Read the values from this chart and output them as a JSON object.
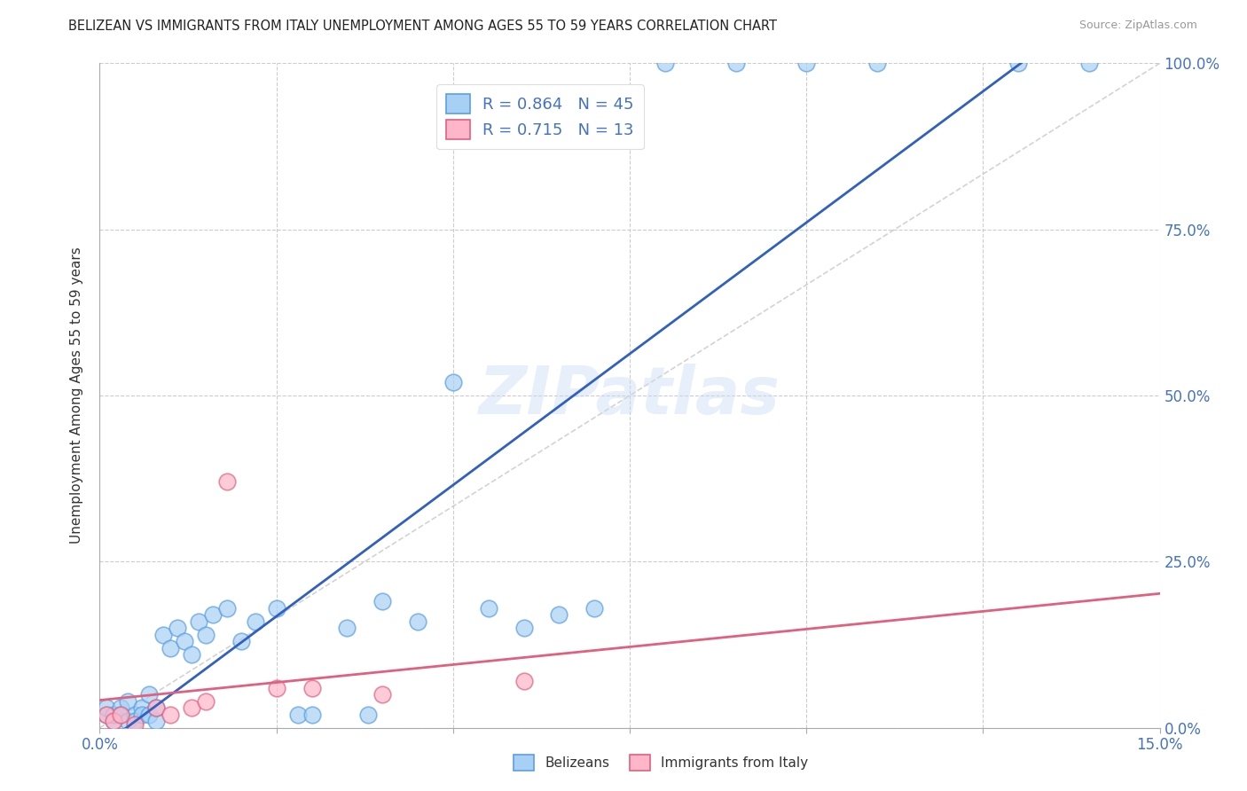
{
  "title": "BELIZEAN VS IMMIGRANTS FROM ITALY UNEMPLOYMENT AMONG AGES 55 TO 59 YEARS CORRELATION CHART",
  "source": "Source: ZipAtlas.com",
  "ylabel": "Unemployment Among Ages 55 to 59 years",
  "xlim": [
    0.0,
    0.15
  ],
  "ylim": [
    0.0,
    1.0
  ],
  "xticks": [
    0.0,
    0.025,
    0.05,
    0.075,
    0.1,
    0.125,
    0.15
  ],
  "xtick_labels": [
    "0.0%",
    "",
    "",
    "",
    "",
    "",
    "15.0%"
  ],
  "yticks": [
    0.0,
    0.25,
    0.5,
    0.75,
    1.0
  ],
  "ytick_labels_right": [
    "0.0%",
    "25.0%",
    "50.0%",
    "75.0%",
    "100.0%"
  ],
  "belizean_color": "#A8D0F5",
  "belizean_edge_color": "#5A9FE0",
  "italy_color": "#FFB6C8",
  "italy_edge_color": "#E06080",
  "blue_line_color": "#3060C0",
  "pink_line_color": "#E06080",
  "ref_line_color": "#C8C8C8",
  "R_belizean": 0.864,
  "N_belizean": 45,
  "R_italy": 0.715,
  "N_italy": 13,
  "legend_R_color": "#4472C4",
  "watermark": "ZIPatlas",
  "background_color": "#FFFFFF",
  "grid_color": "#CCCCCC",
  "bx": [
    0.001,
    0.001,
    0.002,
    0.002,
    0.003,
    0.003,
    0.004,
    0.004,
    0.005,
    0.005,
    0.006,
    0.006,
    0.007,
    0.007,
    0.008,
    0.008,
    0.009,
    0.01,
    0.011,
    0.012,
    0.013,
    0.014,
    0.015,
    0.016,
    0.018,
    0.02,
    0.022,
    0.025,
    0.028,
    0.03,
    0.035,
    0.038,
    0.04,
    0.045,
    0.05,
    0.055,
    0.06,
    0.065,
    0.07,
    0.08,
    0.09,
    0.1,
    0.11,
    0.13,
    0.14
  ],
  "by": [
    0.02,
    0.03,
    0.01,
    0.02,
    0.03,
    0.02,
    0.01,
    0.04,
    0.02,
    0.01,
    0.03,
    0.02,
    0.05,
    0.02,
    0.01,
    0.03,
    0.14,
    0.12,
    0.15,
    0.13,
    0.11,
    0.16,
    0.14,
    0.17,
    0.18,
    0.13,
    0.16,
    0.18,
    0.02,
    0.02,
    0.15,
    0.02,
    0.19,
    0.16,
    0.52,
    0.18,
    0.15,
    0.17,
    0.18,
    1.0,
    1.0,
    1.0,
    1.0,
    1.0,
    1.0
  ],
  "ix": [
    0.001,
    0.002,
    0.003,
    0.005,
    0.008,
    0.01,
    0.013,
    0.015,
    0.018,
    0.025,
    0.03,
    0.04,
    0.06
  ],
  "iy": [
    0.02,
    0.01,
    0.02,
    0.005,
    0.03,
    0.02,
    0.03,
    0.04,
    0.37,
    0.06,
    0.06,
    0.05,
    0.07
  ]
}
